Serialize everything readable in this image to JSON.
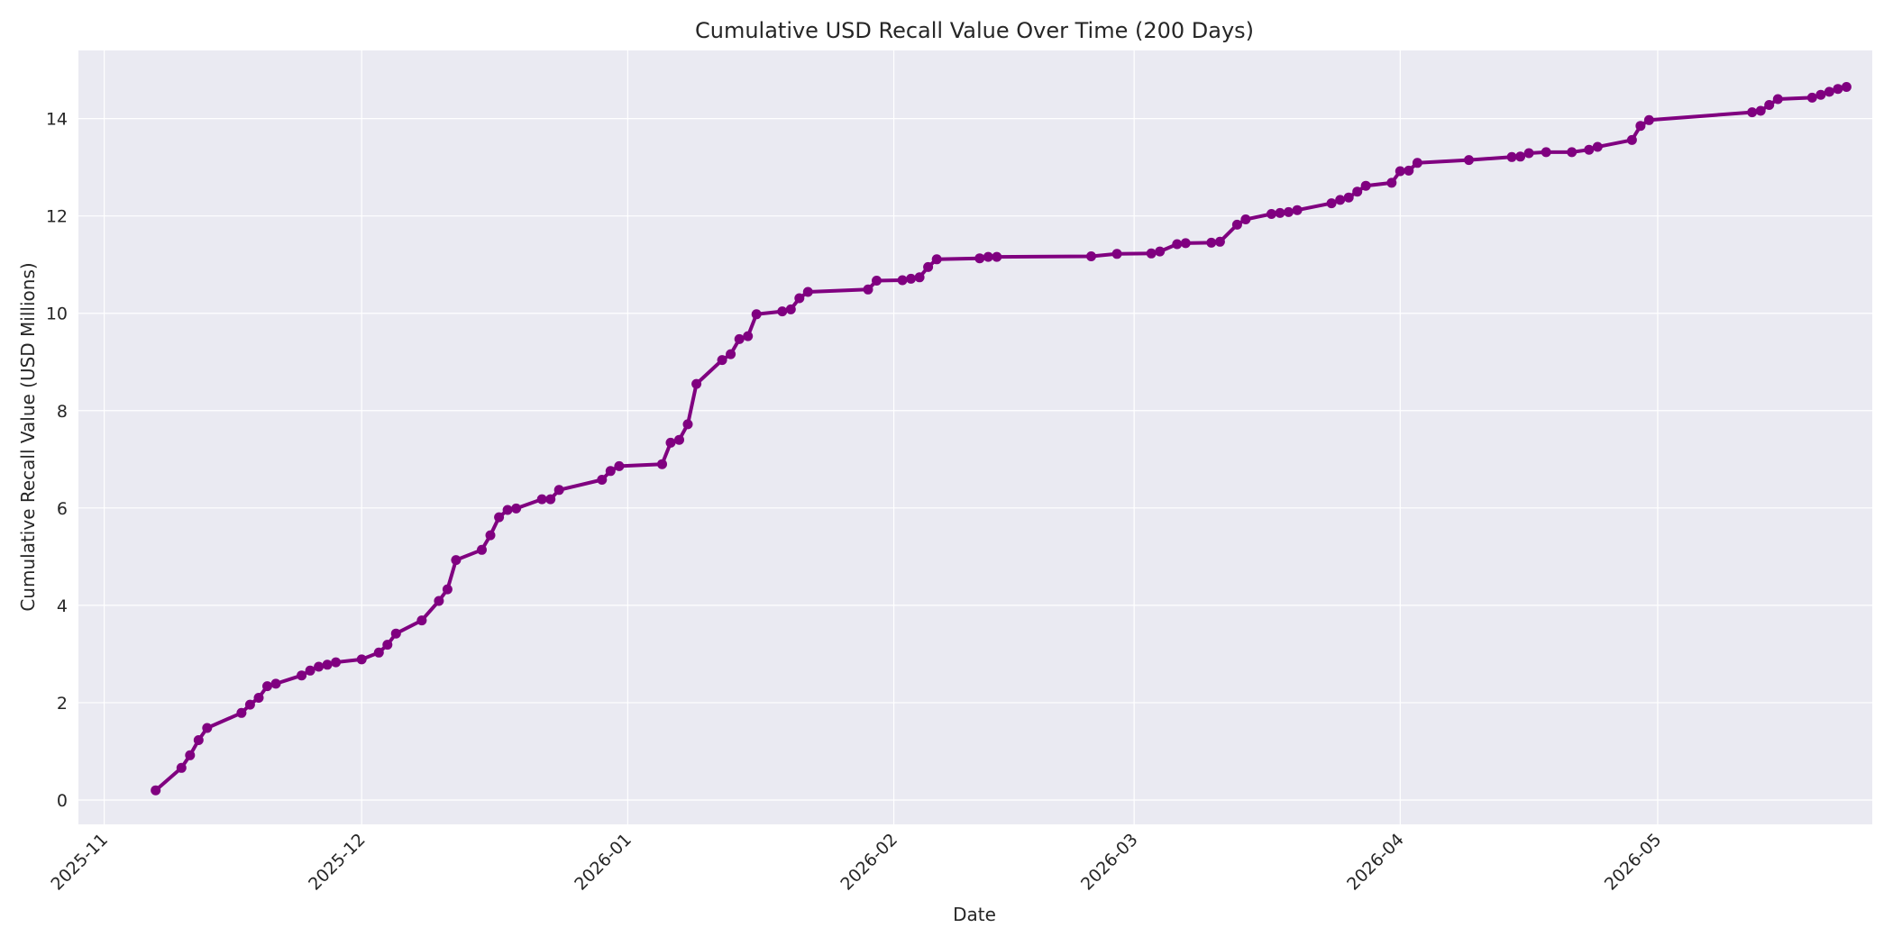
{
  "chart_data": {
    "type": "line",
    "title": "Cumulative USD Recall Value Over Time (200 Days)",
    "xlabel": "Date",
    "ylabel": "Cumulative Recall Value (USD Millions)",
    "xlim": [
      "2025-10-29",
      "2026-05-26"
    ],
    "ylim": [
      -0.5,
      15.4
    ],
    "grid": true,
    "colors": {
      "series": "#800080",
      "plot_bg": "#eaeaf2",
      "grid": "#ffffff",
      "text": "#262626"
    },
    "x_ticks": [
      "2025-11-01",
      "2025-12-01",
      "2026-01-01",
      "2026-02-01",
      "2026-03-01",
      "2026-04-01",
      "2026-05-01"
    ],
    "x_tick_labels": [
      "2025-11",
      "2025-12",
      "2026-01",
      "2026-02",
      "2026-03",
      "2026-04",
      "2026-05"
    ],
    "y_ticks": [
      0,
      2,
      4,
      6,
      8,
      10,
      12,
      14
    ],
    "series": [
      {
        "points": [
          [
            "2025-11-07",
            0.2
          ],
          [
            "2025-11-10",
            0.66
          ],
          [
            "2025-11-11",
            0.92
          ],
          [
            "2025-11-12",
            1.23
          ],
          [
            "2025-11-13",
            1.48
          ],
          [
            "2025-11-17",
            1.79
          ],
          [
            "2025-11-18",
            1.96
          ],
          [
            "2025-11-19",
            2.1
          ],
          [
            "2025-11-20",
            2.34
          ],
          [
            "2025-11-21",
            2.39
          ],
          [
            "2025-11-24",
            2.56
          ],
          [
            "2025-11-25",
            2.66
          ],
          [
            "2025-11-26",
            2.74
          ],
          [
            "2025-11-27",
            2.78
          ],
          [
            "2025-11-28",
            2.83
          ],
          [
            "2025-12-01",
            2.89
          ],
          [
            "2025-12-03",
            3.03
          ],
          [
            "2025-12-04",
            3.19
          ],
          [
            "2025-12-05",
            3.42
          ],
          [
            "2025-12-08",
            3.69
          ],
          [
            "2025-12-10",
            4.09
          ],
          [
            "2025-12-11",
            4.33
          ],
          [
            "2025-12-12",
            4.93
          ],
          [
            "2025-12-15",
            5.14
          ],
          [
            "2025-12-16",
            5.44
          ],
          [
            "2025-12-17",
            5.81
          ],
          [
            "2025-12-18",
            5.96
          ],
          [
            "2025-12-19",
            5.99
          ],
          [
            "2025-12-22",
            6.18
          ],
          [
            "2025-12-23",
            6.18
          ],
          [
            "2025-12-24",
            6.37
          ],
          [
            "2025-12-29",
            6.58
          ],
          [
            "2025-12-30",
            6.76
          ],
          [
            "2025-12-31",
            6.86
          ],
          [
            "2026-01-05",
            6.9
          ],
          [
            "2026-01-06",
            7.34
          ],
          [
            "2026-01-07",
            7.4
          ],
          [
            "2026-01-08",
            7.72
          ],
          [
            "2026-01-09",
            8.55
          ],
          [
            "2026-01-12",
            9.04
          ],
          [
            "2026-01-13",
            9.16
          ],
          [
            "2026-01-14",
            9.47
          ],
          [
            "2026-01-15",
            9.53
          ],
          [
            "2026-01-16",
            9.98
          ],
          [
            "2026-01-19",
            10.04
          ],
          [
            "2026-01-20",
            10.08
          ],
          [
            "2026-01-21",
            10.31
          ],
          [
            "2026-01-22",
            10.44
          ],
          [
            "2026-01-29",
            10.49
          ],
          [
            "2026-01-30",
            10.67
          ],
          [
            "2026-02-02",
            10.68
          ],
          [
            "2026-02-03",
            10.71
          ],
          [
            "2026-02-04",
            10.74
          ],
          [
            "2026-02-05",
            10.95
          ],
          [
            "2026-02-06",
            11.11
          ],
          [
            "2026-02-11",
            11.13
          ],
          [
            "2026-02-12",
            11.16
          ],
          [
            "2026-02-13",
            11.16
          ],
          [
            "2026-02-24",
            11.17
          ],
          [
            "2026-02-27",
            11.22
          ],
          [
            "2026-03-03",
            11.23
          ],
          [
            "2026-03-04",
            11.27
          ],
          [
            "2026-03-06",
            11.42
          ],
          [
            "2026-03-07",
            11.44
          ],
          [
            "2026-03-10",
            11.45
          ],
          [
            "2026-03-11",
            11.47
          ],
          [
            "2026-03-13",
            11.82
          ],
          [
            "2026-03-14",
            11.93
          ],
          [
            "2026-03-17",
            12.04
          ],
          [
            "2026-03-18",
            12.06
          ],
          [
            "2026-03-19",
            12.08
          ],
          [
            "2026-03-20",
            12.12
          ],
          [
            "2026-03-24",
            12.26
          ],
          [
            "2026-03-25",
            12.33
          ],
          [
            "2026-03-26",
            12.38
          ],
          [
            "2026-03-27",
            12.5
          ],
          [
            "2026-03-28",
            12.62
          ],
          [
            "2026-03-31",
            12.68
          ],
          [
            "2026-04-01",
            12.92
          ],
          [
            "2026-04-02",
            12.93
          ],
          [
            "2026-04-03",
            13.09
          ],
          [
            "2026-04-09",
            13.15
          ],
          [
            "2026-04-14",
            13.21
          ],
          [
            "2026-04-15",
            13.22
          ],
          [
            "2026-04-16",
            13.29
          ],
          [
            "2026-04-18",
            13.31
          ],
          [
            "2026-04-21",
            13.31
          ],
          [
            "2026-04-23",
            13.36
          ],
          [
            "2026-04-24",
            13.42
          ],
          [
            "2026-04-28",
            13.56
          ],
          [
            "2026-04-29",
            13.85
          ],
          [
            "2026-04-30",
            13.97
          ],
          [
            "2026-05-12",
            14.13
          ],
          [
            "2026-05-13",
            14.16
          ],
          [
            "2026-05-14",
            14.28
          ],
          [
            "2026-05-15",
            14.4
          ],
          [
            "2026-05-19",
            14.43
          ],
          [
            "2026-05-20",
            14.49
          ],
          [
            "2026-05-21",
            14.55
          ],
          [
            "2026-05-22",
            14.61
          ],
          [
            "2026-05-23",
            14.65
          ]
        ]
      }
    ]
  }
}
